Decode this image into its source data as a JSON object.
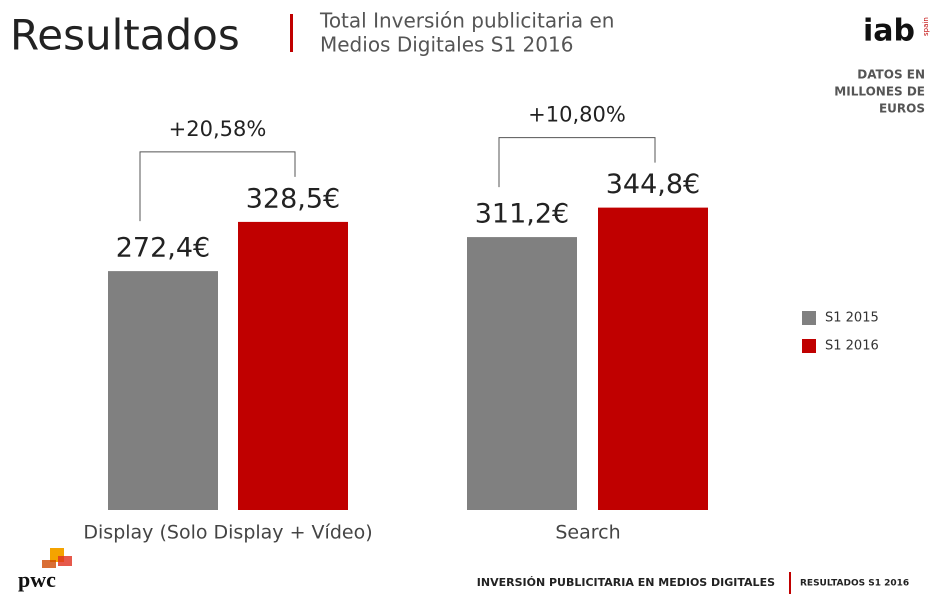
{
  "chart_data": {
    "type": "bar",
    "title": "Resultados",
    "subtitle": [
      "Total Inversión publicitaria en",
      "Medios Digitales S1 2016"
    ],
    "note": [
      "DATOS EN",
      "MILLONES DE",
      "EUROS"
    ],
    "categories": [
      "Display (Solo Display + Vídeo)",
      "Search"
    ],
    "series": [
      {
        "name": "S1 2015",
        "color": "#808080",
        "values": [
          272.4,
          311.2
        ],
        "value_labels": [
          "272,4€",
          "311,2€"
        ]
      },
      {
        "name": "S1 2016",
        "color": "#c00000",
        "values": [
          328.5,
          344.8
        ],
        "value_labels": [
          "328,5€",
          "344,8€"
        ]
      }
    ],
    "annotations": [
      "+20,58%",
      "+10,80%"
    ],
    "legend": "right",
    "footer": [
      "INVERSIÓN PUBLICITARIA EN MEDIOS DIGITALES",
      "RESULTADOS S1 2016"
    ],
    "logos": [
      "iab",
      "spain",
      "pwc"
    ]
  }
}
